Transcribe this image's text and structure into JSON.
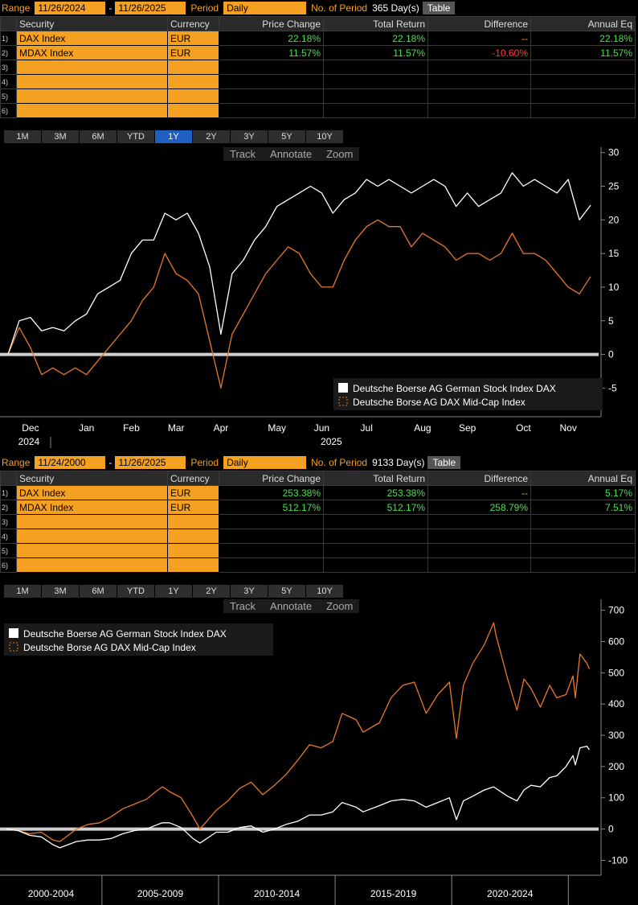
{
  "panels": [
    {
      "range_label": "Range",
      "start": "11/26/2024",
      "dash": "-",
      "end": "11/26/2025",
      "period_label": "Period",
      "period": "Daily",
      "count_label": "No. of Period",
      "count": "365 Day(s)",
      "table_button": "Table",
      "columns": [
        "Security",
        "Currency",
        "Price Change",
        "Total Return",
        "Difference",
        "Annual Eq"
      ],
      "rows": [
        {
          "num": "1)",
          "cells": [
            "DAX Index",
            "EUR",
            "22.18%",
            "22.18%",
            "--",
            "22.18%"
          ]
        },
        {
          "num": "2)",
          "cells": [
            "MDAX Index",
            "EUR",
            "11.57%",
            "11.57%",
            "-10.60%",
            "11.57%"
          ]
        },
        {
          "num": "3)"
        },
        {
          "num": "4)"
        },
        {
          "num": "5)"
        },
        {
          "num": "6)"
        }
      ],
      "period_buttons": [
        "1M",
        "3M",
        "6M",
        "YTD",
        "1Y",
        "2Y",
        "3Y",
        "5Y",
        "10Y"
      ],
      "selected_period": "1Y",
      "tools": [
        "Track",
        "Annotate",
        "Zoom"
      ]
    },
    {
      "range_label": "Range",
      "start": "11/24/2000",
      "dash": "-",
      "end": "11/26/2025",
      "period_label": "Period",
      "period": "Daily",
      "count_label": "No. of Period",
      "count": "9133 Day(s)",
      "table_button": "Table",
      "columns": [
        "Security",
        "Currency",
        "Price Change",
        "Total Return",
        "Difference",
        "Annual Eq"
      ],
      "rows": [
        {
          "num": "1)",
          "cells": [
            "DAX Index",
            "EUR",
            "253.38%",
            "253.38%",
            "--",
            "5.17%"
          ]
        },
        {
          "num": "2)",
          "cells": [
            "MDAX Index",
            "EUR",
            "512.17%",
            "512.17%",
            "258.79%",
            "7.51%"
          ]
        },
        {
          "num": "3)"
        },
        {
          "num": "4)"
        },
        {
          "num": "5)"
        },
        {
          "num": "6)"
        }
      ],
      "period_buttons": [
        "1M",
        "3M",
        "6M",
        "YTD",
        "1Y",
        "2Y",
        "3Y",
        "5Y",
        "10Y"
      ],
      "tools": [
        "Track",
        "Annotate",
        "Zoom"
      ]
    }
  ],
  "chart_data": [
    {
      "type": "line",
      "categories": [
        null,
        "Dec",
        null,
        null,
        null,
        null,
        "Jan",
        null,
        null,
        null,
        "Feb",
        null,
        null,
        null,
        "Mar",
        null,
        null,
        null,
        "Apr",
        null,
        null,
        null,
        null,
        "May",
        null,
        null,
        null,
        "Jun",
        null,
        null,
        null,
        "Jul",
        null,
        null,
        null,
        null,
        "Aug",
        null,
        null,
        null,
        "Sep",
        null,
        null,
        null,
        null,
        "Oct",
        null,
        null,
        null,
        "Nov",
        null,
        null,
        null
      ],
      "year_labels": [
        {
          "value": 1,
          "label": "2024"
        },
        {
          "value": 28,
          "label": "2025"
        }
      ],
      "series": [
        {
          "name": "Deutsche Boerse AG German Stock Index DAX",
          "color": "#ffffff",
          "values": [
            0,
            5,
            5.5,
            3.5,
            4,
            3.5,
            5,
            6,
            9,
            10,
            11,
            15,
            17,
            17,
            21,
            20,
            21,
            18,
            13,
            3,
            12,
            14,
            17,
            19,
            22,
            23,
            24,
            25,
            24,
            21,
            23,
            24,
            26,
            25,
            26,
            25,
            24,
            25,
            26,
            25,
            22,
            24,
            22,
            23,
            24,
            27,
            25,
            26,
            25,
            24,
            26,
            20,
            22.18
          ]
        },
        {
          "name": "Deutsche Borse AG DAX Mid-Cap Index",
          "color": "#e8782a",
          "values": [
            0,
            4,
            1,
            -3,
            -2,
            -3,
            -2,
            -3,
            -1,
            1,
            3,
            5,
            8,
            10,
            15,
            12,
            11,
            9,
            2,
            -5,
            3,
            6,
            9,
            12,
            14,
            16,
            15,
            12,
            10,
            10,
            14,
            17,
            19,
            20,
            19,
            19,
            16,
            18,
            17,
            16,
            14,
            15,
            15,
            14,
            15,
            18,
            15,
            15,
            14,
            12,
            10,
            9,
            11.57
          ]
        }
      ],
      "ylim": [
        -8.9,
        30.8
      ],
      "yticks": [
        -5,
        0,
        5,
        10,
        15,
        20,
        25,
        30
      ],
      "legend": "lower right",
      "grid": false
    },
    {
      "type": "line",
      "x": [
        2000.9,
        2001.4,
        2001.9,
        2002.4,
        2002.9,
        2003.2,
        2003.9,
        2004.4,
        2004.9,
        2005.4,
        2005.9,
        2006.4,
        2006.9,
        2007.4,
        2007.6,
        2007.9,
        2008.4,
        2008.9,
        2009.2,
        2009.9,
        2010.4,
        2010.9,
        2011.4,
        2011.9,
        2012.4,
        2012.9,
        2013.4,
        2013.9,
        2014.4,
        2014.9,
        2015.3,
        2015.9,
        2016.2,
        2016.9,
        2017.4,
        2017.9,
        2018.4,
        2018.9,
        2019.4,
        2019.9,
        2020.2,
        2020.5,
        2020.9,
        2021.4,
        2021.8,
        2021.9,
        2022.4,
        2022.8,
        2023.1,
        2023.4,
        2023.8,
        2024.2,
        2024.5,
        2024.9,
        2025.2,
        2025.3,
        2025.5,
        2025.8,
        2025.9
      ],
      "xlim": [
        2000.8,
        2026.3
      ],
      "x_groups": [
        {
          "label": "2000-2004",
          "range": [
            2000,
            2005
          ]
        },
        {
          "label": "2005-2009",
          "range": [
            2005,
            2010
          ]
        },
        {
          "label": "2010-2014",
          "range": [
            2010,
            2015
          ]
        },
        {
          "label": "2015-2019",
          "range": [
            2015,
            2020
          ]
        },
        {
          "label": "2020-2024",
          "range": [
            2020,
            2025
          ]
        }
      ],
      "series": [
        {
          "name": "Deutsche Boerse AG German Stock Index DAX",
          "color": "#ffffff",
          "values": [
            0,
            -5,
            -20,
            -25,
            -50,
            -60,
            -40,
            -35,
            -35,
            -30,
            -15,
            -5,
            0,
            15,
            20,
            20,
            5,
            -30,
            -45,
            -10,
            -10,
            5,
            10,
            -10,
            0,
            15,
            25,
            45,
            45,
            55,
            85,
            70,
            55,
            75,
            90,
            95,
            90,
            70,
            85,
            100,
            30,
            90,
            105,
            125,
            135,
            130,
            105,
            90,
            125,
            140,
            135,
            165,
            170,
            200,
            235,
            205,
            260,
            265,
            253.38
          ]
        },
        {
          "name": "Deutsche Borse AG DAX Mid-Cap Index",
          "color": "#e8782a",
          "values": [
            0,
            -5,
            -15,
            -10,
            -35,
            -40,
            0,
            15,
            20,
            40,
            65,
            80,
            95,
            125,
            135,
            120,
            100,
            40,
            0,
            60,
            90,
            130,
            150,
            110,
            140,
            175,
            220,
            270,
            260,
            280,
            370,
            350,
            310,
            340,
            420,
            460,
            470,
            370,
            430,
            470,
            290,
            460,
            530,
            590,
            660,
            620,
            480,
            380,
            480,
            450,
            390,
            460,
            420,
            430,
            490,
            420,
            560,
            530,
            512.17
          ]
        }
      ],
      "ylim": [
        -140,
        735
      ],
      "yticks": [
        -100,
        0,
        100,
        200,
        300,
        400,
        500,
        600,
        700
      ],
      "legend": "upper left",
      "grid": false
    }
  ]
}
